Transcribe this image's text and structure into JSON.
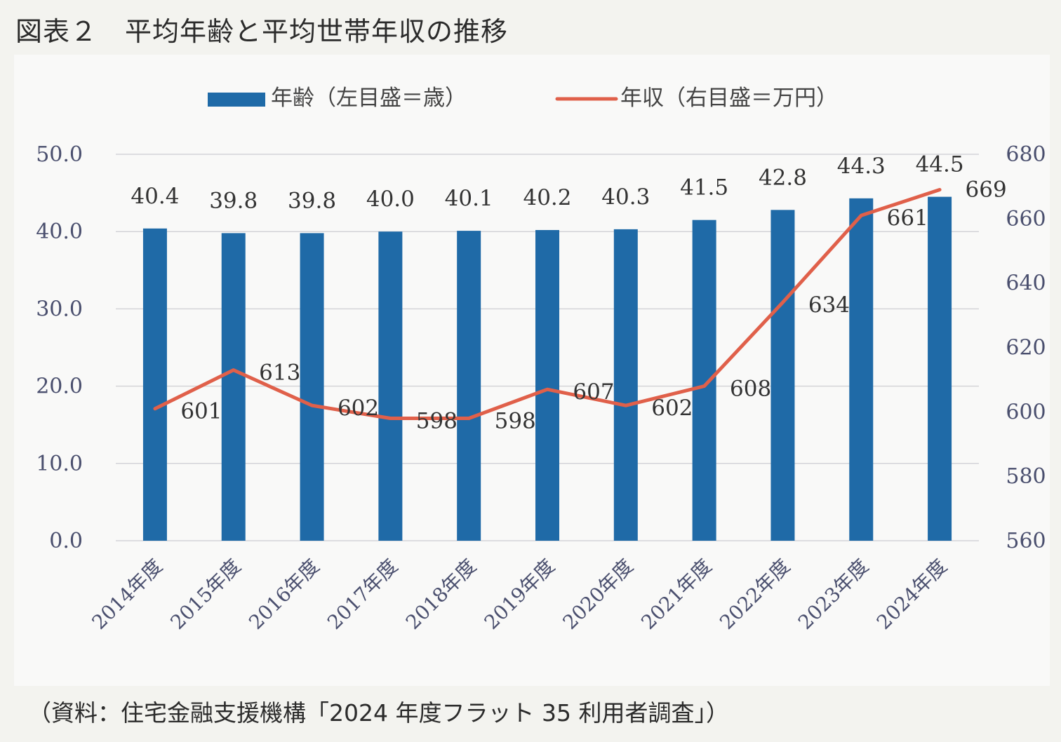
{
  "title": "図表２　平均年齢と平均世帯年収の推移",
  "source": "（資料：住宅金融支援機構「2024 年度フラット 35 利用者調査」）",
  "colors": {
    "bar": "#1f6aa7",
    "line": "#e0604a",
    "grid": "#d4d4d8",
    "panel": "#f9f9f8"
  },
  "chart_data": {
    "type": "bar+line",
    "categories": [
      "2014年度",
      "2015年度",
      "2016年度",
      "2017年度",
      "2018年度",
      "2019年度",
      "2020年度",
      "2021年度",
      "2022年度",
      "2023年度",
      "2024年度"
    ],
    "series": [
      {
        "name": "年齢（左目盛＝歳）",
        "type": "bar",
        "axis": "left",
        "values": [
          40.4,
          39.8,
          39.8,
          40.0,
          40.1,
          40.2,
          40.3,
          41.5,
          42.8,
          44.3,
          44.5
        ],
        "labels": [
          "40.4",
          "39.8",
          "39.8",
          "40.0",
          "40.1",
          "40.2",
          "40.3",
          "41.5",
          "42.8",
          "44.3",
          "44.5"
        ]
      },
      {
        "name": "年収（右目盛＝万円）",
        "type": "line",
        "axis": "right",
        "values": [
          601,
          613,
          602,
          598,
          598,
          607,
          602,
          608,
          634,
          661,
          669
        ],
        "labels": [
          "601",
          "613",
          "602",
          "598",
          "598",
          "607",
          "602",
          "608",
          "634",
          "661",
          "669"
        ]
      }
    ],
    "y_left": {
      "min": 0,
      "max": 50,
      "ticks": [
        "0.0",
        "10.0",
        "20.0",
        "30.0",
        "40.0",
        "50.0"
      ]
    },
    "y_right": {
      "min": 560,
      "max": 680,
      "ticks": [
        "560",
        "580",
        "600",
        "620",
        "640",
        "660",
        "680"
      ]
    },
    "grid": true,
    "legend": "top-center"
  }
}
